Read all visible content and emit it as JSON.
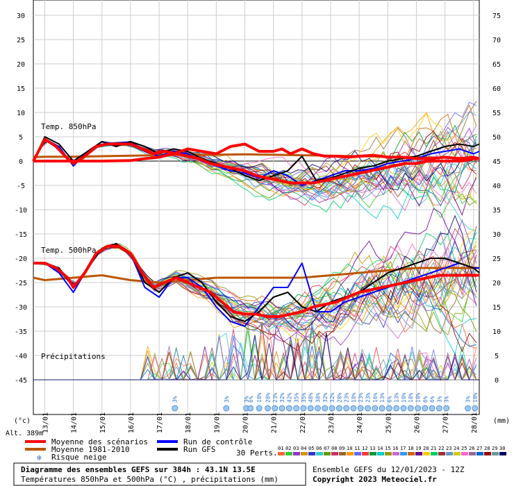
{
  "chart_data": {
    "type": "line",
    "title": "Diagramme des ensembles GEFS sur 384h : 43.1N 13.5E",
    "subtitle": "Températures 850hPa et 500hPa (°C) , précipitations (mm)",
    "run_info": "Ensemble GEFS du 12/01/2023 - 12Z",
    "copyright": "Copyright 2023 Meteociel.fr",
    "altitude": "Alt. 389m",
    "left_unit": "(°c)",
    "right_unit": "(mm)",
    "y_left_ticks": [
      "30",
      "25",
      "20",
      "15",
      "10",
      "5",
      "0",
      "-5",
      "-10",
      "-15",
      "-20",
      "-25",
      "-30",
      "-35",
      "-40",
      "-45"
    ],
    "y_right_ticks": [
      "75",
      "70",
      "65",
      "60",
      "55",
      "50",
      "45",
      "40",
      "35",
      "30",
      "25",
      "20",
      "15",
      "10",
      "5",
      "0"
    ],
    "ylim_left": [
      -45,
      30
    ],
    "ylim_right": [
      0,
      75
    ],
    "x_ticks": [
      "13/01",
      "14/01",
      "15/01",
      "16/01",
      "17/01",
      "18/01",
      "19/01",
      "20/01",
      "21/01",
      "22/01",
      "23/01",
      "24/01",
      "25/01",
      "26/01",
      "27/01",
      "28/01"
    ],
    "section_labels": [
      "Temp. 850hPa",
      "Temp. 500hPa",
      "Précipitations"
    ],
    "legend": {
      "mean": "Moyenne des scénarios",
      "clim": "Moyenne 1981-2010",
      "snow": "Risque neige",
      "control": "Run de contrôle",
      "gfs": "Run GFS",
      "perts": "30 Perts."
    },
    "pert_labels": [
      "01",
      "02",
      "03",
      "04",
      "05",
      "06",
      "07",
      "08",
      "09",
      "10",
      "11",
      "12",
      "13",
      "14",
      "15",
      "16",
      "17",
      "18",
      "19",
      "20",
      "21",
      "22",
      "23",
      "24",
      "25",
      "26",
      "27",
      "28",
      "29",
      "30"
    ],
    "pert_colors": [
      "#ff6633",
      "#33cc33",
      "#9933cc",
      "#cc9900",
      "#3333cc",
      "#33cccc",
      "#669900",
      "#cc3366",
      "#996633",
      "#ff9900",
      "#6666ff",
      "#ff3333",
      "#009933",
      "#00cccc",
      "#999900",
      "#cc66cc",
      "#3399ff",
      "#cc6600",
      "#660099",
      "#ffcc00",
      "#00cc66",
      "#993333",
      "#6699cc",
      "#cccc00",
      "#ff66cc",
      "#996699",
      "#0066cc",
      "#990000",
      "#669999",
      "#000066"
    ],
    "snow_risk": [
      {
        "day": 17.55,
        "pct": "3%"
      },
      {
        "day": 19.35,
        "pct": "3%"
      },
      {
        "day": 20.05,
        "pct": "3%"
      },
      {
        "day": 20.2,
        "pct": "6%"
      },
      {
        "day": 20.5,
        "pct": "10%"
      },
      {
        "day": 20.8,
        "pct": "28%"
      },
      {
        "day": 21.05,
        "pct": "23%"
      },
      {
        "day": 21.3,
        "pct": "32%"
      },
      {
        "day": 21.55,
        "pct": "42%"
      },
      {
        "day": 21.8,
        "pct": "35%"
      },
      {
        "day": 22.05,
        "pct": "35%"
      },
      {
        "day": 22.3,
        "pct": "48%"
      },
      {
        "day": 22.55,
        "pct": "38%"
      },
      {
        "day": 22.8,
        "pct": "32%"
      },
      {
        "day": 23.05,
        "pct": "32%"
      },
      {
        "day": 23.3,
        "pct": "28%"
      },
      {
        "day": 23.55,
        "pct": "23%"
      },
      {
        "day": 23.8,
        "pct": "18%"
      },
      {
        "day": 24.05,
        "pct": "23%"
      },
      {
        "day": 24.3,
        "pct": "23%"
      },
      {
        "day": 24.55,
        "pct": "16%"
      },
      {
        "day": 24.8,
        "pct": "13%"
      },
      {
        "day": 25.05,
        "pct": "6%"
      },
      {
        "day": 25.3,
        "pct": "13%"
      },
      {
        "day": 25.55,
        "pct": "10%"
      },
      {
        "day": 25.8,
        "pct": "10%"
      },
      {
        "day": 26.05,
        "pct": "10%"
      },
      {
        "day": 26.3,
        "pct": "6%"
      },
      {
        "day": 26.55,
        "pct": "6%"
      },
      {
        "day": 26.8,
        "pct": "3%"
      },
      {
        "day": 27.05,
        "pct": "3%"
      },
      {
        "day": 27.8,
        "pct": "3%"
      },
      {
        "day": 28.05,
        "pct": "10%"
      }
    ],
    "series": [
      {
        "name": "Moyenne des scénarios",
        "key": "mean850",
        "color": "#ff0000",
        "x": [
          12.6,
          13,
          13.4,
          13.8,
          14,
          14.4,
          14.8,
          15.2,
          15.6,
          16,
          16.4,
          16.8,
          17.2,
          17.6,
          18,
          18.4,
          18.8,
          19.2,
          19.6,
          20,
          20.4,
          20.8,
          21.2,
          21.6,
          22,
          22.4,
          22.8,
          23.2,
          23.6,
          24,
          24.4,
          24.8,
          25.2,
          25.6,
          26,
          26.4,
          26.8,
          27.2,
          27.6,
          28,
          28.2
        ],
        "y": [
          0,
          4.5,
          3,
          0.5,
          -0.5,
          1,
          3,
          3.5,
          3.5,
          3.5,
          2.5,
          1.5,
          2,
          1.5,
          1,
          0.5,
          -0.5,
          -1,
          -1.5,
          -2,
          -3,
          -3.5,
          -4,
          -4.5,
          -4.5,
          -4.5,
          -4,
          -3.5,
          -3,
          -2.5,
          -2,
          -1.5,
          -1,
          -0.5,
          -0.5,
          0,
          0,
          0,
          0,
          0.5,
          0.5
        ]
      },
      {
        "name": "Moyenne 1981-2010",
        "key": "clim850",
        "color": "#bb5500",
        "x": [
          12.6,
          13,
          14,
          15,
          16,
          17,
          18,
          19,
          20,
          21,
          22,
          23,
          24,
          25,
          26,
          27,
          28,
          28.2
        ],
        "y": [
          0.8,
          0.9,
          0.9,
          1.0,
          1.1,
          1.2,
          1.3,
          1.3,
          1.4,
          1.3,
          1.2,
          1.1,
          1.0,
          0.9,
          0.8,
          0.7,
          0.6,
          0.6
        ]
      },
      {
        "name": "Run de contrôle",
        "key": "ctrl850",
        "color": "#0000ff",
        "x": [
          12.6,
          13,
          13.5,
          14,
          14.5,
          15,
          15.5,
          16,
          16.5,
          17,
          17.5,
          18,
          18.5,
          19,
          19.5,
          20,
          20.5,
          21,
          21.5,
          22,
          22.5,
          23,
          23.5,
          24,
          24.5,
          25,
          25.5,
          26,
          26.5,
          27,
          27.5,
          28,
          28.2
        ],
        "y": [
          0,
          4.5,
          3,
          -1,
          2,
          4,
          3.5,
          4,
          2,
          1,
          2,
          1.5,
          0,
          -1,
          -2,
          -2.5,
          -3.5,
          -2,
          -3,
          -5,
          -4,
          -3,
          -2,
          -2,
          -1.5,
          -0.5,
          0,
          0.5,
          1.5,
          2,
          2.5,
          1.5,
          2
        ]
      },
      {
        "name": "Run GFS",
        "key": "gfs850",
        "color": "#000000",
        "x": [
          12.6,
          13,
          13.5,
          14,
          14.5,
          15,
          15.5,
          16,
          16.5,
          17,
          17.5,
          18,
          18.5,
          19,
          19.5,
          20,
          20.5,
          21,
          21.5,
          22,
          22.5,
          23,
          23.5,
          24,
          24.5,
          25,
          25.5,
          26,
          26.5,
          27,
          27.5,
          28,
          28.2
        ],
        "y": [
          0,
          5,
          3.5,
          0,
          2,
          4,
          3,
          4,
          3,
          1.5,
          2.5,
          2,
          0.5,
          -0.5,
          -1.5,
          -3,
          -4,
          -3,
          -2,
          1,
          -4,
          -3.5,
          -2.5,
          -1.5,
          -1,
          0,
          0.5,
          1,
          2,
          3,
          3.5,
          3,
          3.5
        ]
      },
      {
        "name": "Moyenne des scénarios",
        "key": "mean500",
        "color": "#ff0000",
        "x": [
          12.6,
          13,
          13.4,
          13.8,
          14,
          14.4,
          14.8,
          15.2,
          15.6,
          16,
          16.4,
          16.8,
          17.2,
          17.6,
          18,
          18.4,
          18.8,
          19.2,
          19.6,
          20,
          20.4,
          20.8,
          21.2,
          21.6,
          22,
          22.4,
          22.8,
          23.2,
          23.6,
          24,
          24.4,
          24.8,
          25.2,
          25.6,
          26,
          26.4,
          26.8,
          27.2,
          27.6,
          28,
          28.2
        ],
        "y": [
          -21,
          -21,
          -22,
          -24,
          -26,
          -23,
          -19,
          -17.5,
          -17.5,
          -19,
          -23,
          -26,
          -25,
          -24,
          -25,
          -26,
          -27,
          -29,
          -31,
          -31.5,
          -31.5,
          -32,
          -32,
          -31.5,
          -31,
          -30,
          -29.5,
          -29,
          -28,
          -27,
          -26.5,
          -26,
          -25.5,
          -25,
          -24.5,
          -24,
          -23.5,
          -23.5,
          -23.5,
          -23.5,
          -23.5
        ]
      },
      {
        "name": "Moyenne 1981-2010",
        "key": "clim500",
        "color": "#bb5500",
        "x": [
          12.6,
          13,
          14,
          15,
          16,
          17,
          18,
          19,
          20,
          21,
          22,
          23,
          24,
          25,
          26,
          27,
          28,
          28.2
        ],
        "y": [
          -24,
          -24.5,
          -24,
          -23.5,
          -24.5,
          -25,
          -24.5,
          -24,
          -24,
          -24,
          -24,
          -23.5,
          -23,
          -22.5,
          -22,
          -22,
          -22,
          -22
        ]
      },
      {
        "name": "Run de contrôle",
        "key": "ctrl500",
        "color": "#0000ff",
        "x": [
          12.6,
          13,
          13.5,
          14,
          14.5,
          15,
          15.5,
          16,
          16.5,
          17,
          17.5,
          18,
          18.5,
          19,
          19.5,
          20,
          20.5,
          21,
          21.5,
          22,
          22.5,
          23,
          23.5,
          24,
          24.5,
          25,
          25.5,
          26,
          26.5,
          27,
          27.5,
          28,
          28.2
        ],
        "y": [
          -21,
          -21,
          -23,
          -27,
          -22,
          -18,
          -17,
          -19,
          -26,
          -28,
          -24,
          -24,
          -26,
          -30,
          -33,
          -34,
          -30,
          -26,
          -26,
          -21,
          -31,
          -31,
          -29,
          -28,
          -27,
          -26,
          -25,
          -24,
          -23,
          -22,
          -21,
          -22,
          -22
        ]
      },
      {
        "name": "Run GFS",
        "key": "gfs500",
        "color": "#000000",
        "x": [
          12.6,
          13,
          13.5,
          14,
          14.5,
          15,
          15.5,
          16,
          16.5,
          17,
          17.5,
          18,
          18.5,
          19,
          19.5,
          20,
          20.5,
          21,
          21.5,
          22,
          22.5,
          23,
          23.5,
          24,
          24.5,
          25,
          25.5,
          26,
          26.5,
          27,
          27.5,
          28,
          28.2
        ],
        "y": [
          -21,
          -21,
          -22,
          -26,
          -22,
          -18,
          -17,
          -19,
          -25,
          -27,
          -24,
          -23,
          -25,
          -29,
          -32,
          -33,
          -31,
          -28,
          -27,
          -30,
          -31,
          -29,
          -28,
          -27,
          -25,
          -23,
          -22,
          -21,
          -20,
          -20,
          -21,
          -22,
          -23
        ]
      },
      {
        "name": "Moyenne des scénarios",
        "key": "meanprecip",
        "color": "#ff0000",
        "x": [
          12.6,
          13,
          14,
          15,
          16,
          16.5,
          17,
          17.5,
          18,
          18.5,
          19,
          19.5,
          20,
          20.5,
          21,
          21.3,
          21.6,
          22,
          22.4,
          22.8,
          23.2,
          23.6,
          24,
          24.5,
          25,
          25.5,
          26,
          26.5,
          27,
          27.5,
          28,
          28.2
        ],
        "y": [
          0,
          0,
          0,
          0,
          0.1,
          0.5,
          0.8,
          1.5,
          2.5,
          2,
          1.5,
          3,
          3.5,
          2,
          2,
          2.5,
          1.5,
          2.5,
          1.5,
          1,
          1,
          0.8,
          1,
          1.2,
          0.8,
          0.8,
          0.5,
          0.5,
          0.8,
          0.5,
          0.8,
          0.5
        ]
      }
    ]
  }
}
